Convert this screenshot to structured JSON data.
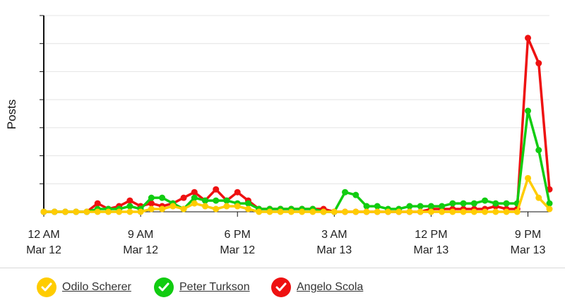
{
  "chart_data": {
    "type": "line",
    "ylabel": "Posts",
    "xlabel": "",
    "ylim": [
      0,
      7
    ],
    "grid": true,
    "legend_position": "bottom",
    "x_ticks": [
      {
        "hour": 0,
        "time": "12 AM",
        "date": "Mar 12"
      },
      {
        "hour": 9,
        "time": "9 AM",
        "date": "Mar 12"
      },
      {
        "hour": 18,
        "time": "6 PM",
        "date": "Mar 12"
      },
      {
        "hour": 27,
        "time": "3 AM",
        "date": "Mar 13"
      },
      {
        "hour": 36,
        "time": "12 PM",
        "date": "Mar 13"
      },
      {
        "hour": 45,
        "time": "9 PM",
        "date": "Mar 13"
      }
    ],
    "x": [
      0,
      1,
      2,
      3,
      4,
      5,
      6,
      7,
      8,
      9,
      10,
      11,
      12,
      13,
      14,
      15,
      16,
      17,
      18,
      19,
      20,
      21,
      22,
      23,
      24,
      25,
      26,
      27,
      28,
      29,
      30,
      31,
      32,
      33,
      34,
      35,
      36,
      37,
      38,
      39,
      40,
      41,
      42,
      43,
      44,
      45,
      46,
      47
    ],
    "series": [
      {
        "name": "Angelo Scola",
        "color": "#ee1111",
        "values": [
          0,
          0,
          0,
          0,
          0,
          0.3,
          0.1,
          0.2,
          0.4,
          0.2,
          0.3,
          0.2,
          0.3,
          0.5,
          0.7,
          0.4,
          0.8,
          0.4,
          0.7,
          0.4,
          0.1,
          0.1,
          0.1,
          0.1,
          0.1,
          0.1,
          0.1,
          0,
          0,
          0,
          0,
          0,
          0,
          0,
          0,
          0,
          0.1,
          0.1,
          0.1,
          0.1,
          0.1,
          0.1,
          0.2,
          0.1,
          0.1,
          6.2,
          5.3,
          0.8
        ]
      },
      {
        "name": "Peter Turkson",
        "color": "#11cc11",
        "values": [
          0,
          0,
          0,
          0,
          0,
          0.1,
          0.1,
          0.1,
          0.2,
          0.1,
          0.5,
          0.5,
          0.3,
          0.1,
          0.5,
          0.4,
          0.4,
          0.4,
          0.3,
          0.3,
          0.1,
          0.1,
          0.1,
          0.1,
          0.1,
          0.1,
          0,
          0,
          0.7,
          0.6,
          0.2,
          0.2,
          0.1,
          0.1,
          0.2,
          0.2,
          0.2,
          0.2,
          0.3,
          0.3,
          0.3,
          0.4,
          0.3,
          0.3,
          0.3,
          3.6,
          2.2,
          0.3
        ]
      },
      {
        "name": "Odilo Scherer",
        "color": "#ffcc00",
        "values": [
          0,
          0,
          0,
          0,
          0,
          0,
          0,
          0,
          0,
          0,
          0.1,
          0.1,
          0.2,
          0.1,
          0.3,
          0.2,
          0.1,
          0.2,
          0.2,
          0.1,
          0,
          0,
          0,
          0,
          0,
          0,
          0,
          0,
          0,
          0,
          0,
          0,
          0,
          0,
          0,
          0,
          0,
          0,
          0,
          0,
          0,
          0,
          0,
          0,
          0,
          1.2,
          0.5,
          0.1
        ]
      }
    ]
  },
  "legend": {
    "items": [
      {
        "label": "Odilo Scherer",
        "color": "#ffcc00"
      },
      {
        "label": "Peter Turkson",
        "color": "#11cc11"
      },
      {
        "label": "Angelo Scola",
        "color": "#ee1111"
      }
    ]
  }
}
